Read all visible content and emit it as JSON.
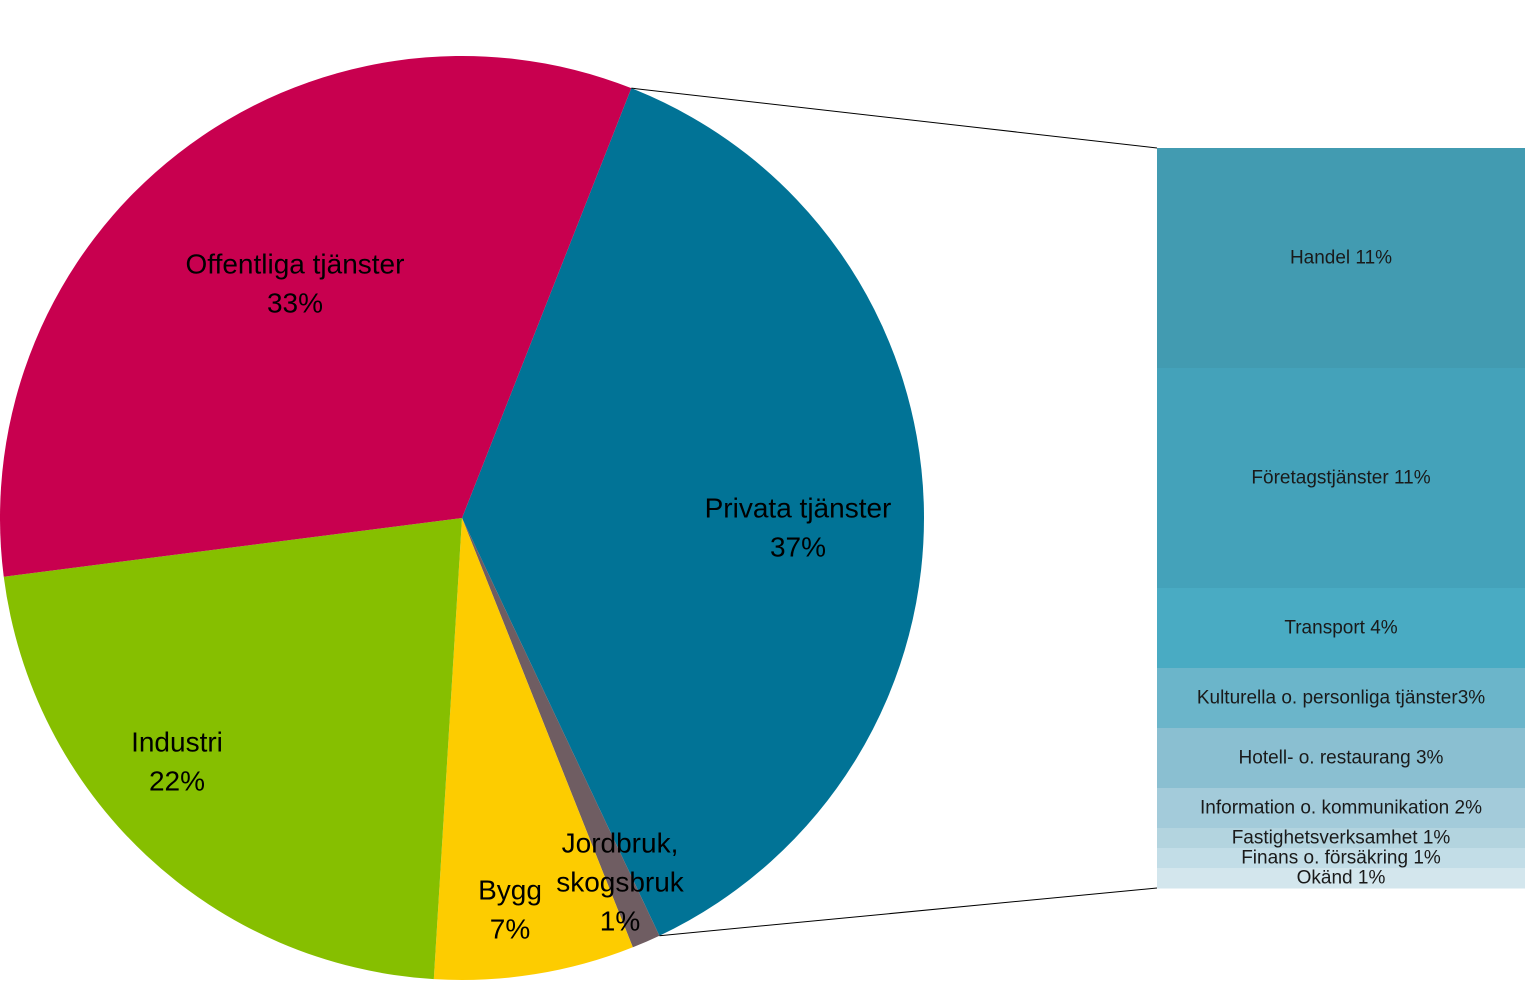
{
  "chart_data": {
    "type": "pie",
    "subtype": "pie-of-bar",
    "slices": [
      {
        "label_lines": [
          "Privata tjänster",
          "37%"
        ],
        "value": 37,
        "color": "#017396"
      },
      {
        "label_lines": [
          "Jordbruk,",
          "skogsbruk",
          "1%"
        ],
        "value": 1,
        "color": "#6f5d62"
      },
      {
        "label_lines": [
          "Bygg",
          "7%"
        ],
        "value": 7,
        "color": "#fdcc00"
      },
      {
        "label_lines": [
          "Industri",
          "22%"
        ],
        "value": 22,
        "color": "#86bf00"
      },
      {
        "label_lines": [
          "Offentliga tjänster",
          "33%"
        ],
        "value": 33,
        "color": "#c8004f"
      }
    ],
    "breakdown_of": "Privata tjänster",
    "breakdown": [
      {
        "label": "Handel 11%",
        "value": 11,
        "color": "#429bb1"
      },
      {
        "label": "Företagstjänster 11%",
        "value": 11,
        "color": "#44a2ba"
      },
      {
        "label": "Transport 4%",
        "value": 4,
        "color": "#49abc3"
      },
      {
        "label": "Kulturella o. personliga tjänster3%",
        "value": 3,
        "color": "#6bb5ca"
      },
      {
        "label": "Hotell- o. restaurang 3%",
        "value": 3,
        "color": "#8abfd1"
      },
      {
        "label": "Information o. kommunikation 2%",
        "value": 2,
        "color": "#a3cbda"
      },
      {
        "label": "Fastighetsverksamhet 1%",
        "value": 1,
        "color": "#b3d4df"
      },
      {
        "label": "Finans o. försäkring 1%",
        "value": 1,
        "color": "#c2dde7"
      },
      {
        "label": "Okänd 1%",
        "value": 1,
        "color": "#d3e6ed"
      }
    ]
  }
}
